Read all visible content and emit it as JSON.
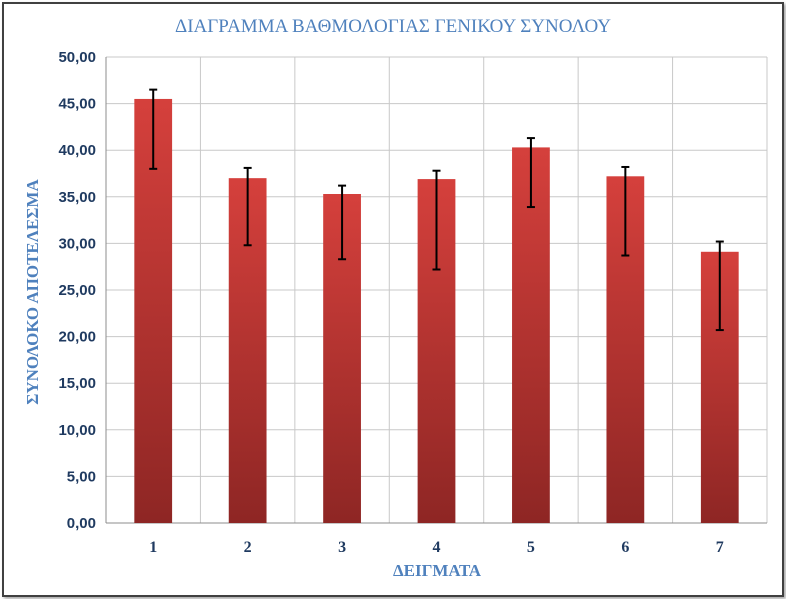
{
  "chart_data": {
    "type": "bar",
    "title": "ΔΙΑΓΡΑΜΜΑ ΒΑΘΜΟΛΟΓΙΑΣ ΓΕΝΙΚΟΥ ΣΥΝΟΛΟΥ",
    "xlabel": "ΔΕΙΓΜΑΤΑ",
    "ylabel": "ΣΥΝΟΛΟΚΟ ΑΠΟΤΕΛΕΣΜΑ",
    "categories": [
      "1",
      "2",
      "3",
      "4",
      "5",
      "6",
      "7"
    ],
    "values": [
      45.5,
      37.0,
      35.3,
      36.9,
      40.3,
      37.2,
      29.1
    ],
    "error_low": [
      38.0,
      29.8,
      28.3,
      27.2,
      33.9,
      28.7,
      20.7
    ],
    "error_high": [
      46.5,
      38.1,
      36.2,
      37.8,
      41.3,
      38.2,
      30.2
    ],
    "ylim": [
      0,
      50
    ],
    "yticks": [
      "0,00",
      "5,00",
      "10,00",
      "15,00",
      "20,00",
      "25,00",
      "30,00",
      "35,00",
      "40,00",
      "45,00",
      "50,00"
    ],
    "grid": true,
    "colors": {
      "bar_top": "#d5403c",
      "bar_bottom": "#8e2624",
      "text": "#1f3a60",
      "title": "#4f81bd"
    }
  }
}
